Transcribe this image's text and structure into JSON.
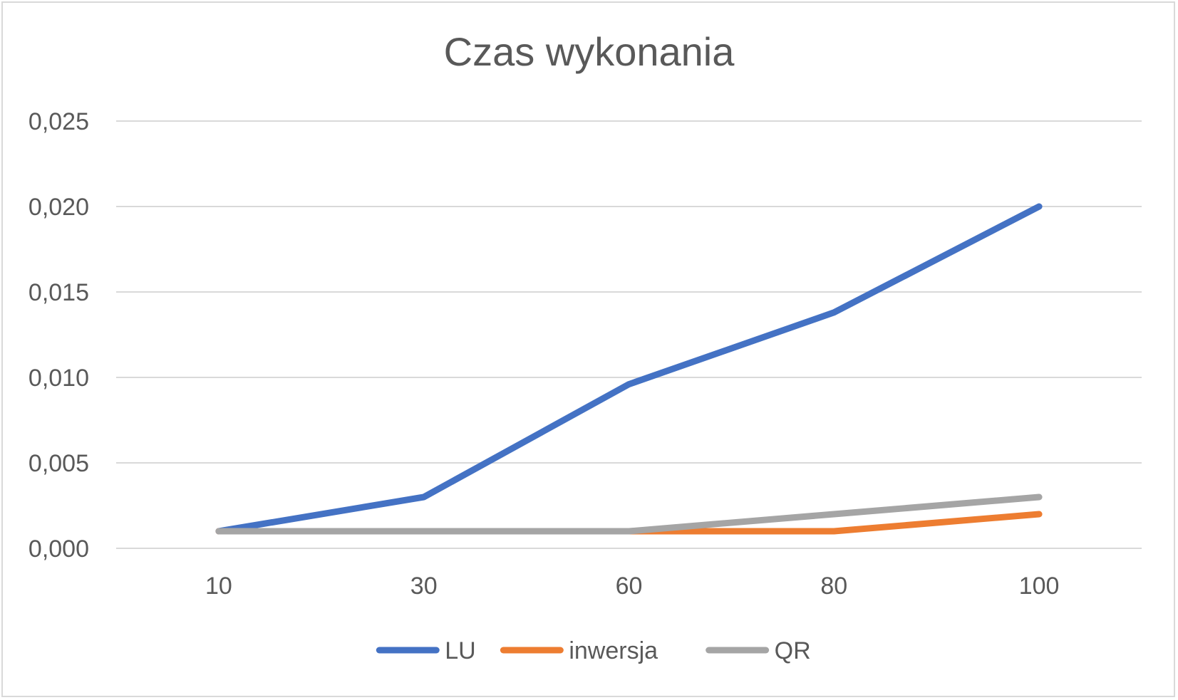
{
  "chart_data": {
    "type": "line",
    "title": "Czas wykonania",
    "xlabel": "",
    "ylabel": "",
    "categories": [
      "10",
      "30",
      "60",
      "80",
      "100"
    ],
    "y_ticks": [
      "0,000",
      "0,005",
      "0,010",
      "0,015",
      "0,020",
      "0,025"
    ],
    "ylim": [
      0,
      0.025
    ],
    "grid": true,
    "legend_position": "bottom",
    "series": [
      {
        "name": "LU",
        "color": "#4472c4",
        "values": [
          0.001,
          0.003,
          0.0096,
          0.0138,
          0.02
        ]
      },
      {
        "name": "inwersja",
        "color": "#ed7d31",
        "values": [
          0.001,
          0.001,
          0.001,
          0.001,
          0.002
        ]
      },
      {
        "name": "QR",
        "color": "#a5a5a5",
        "values": [
          0.001,
          0.001,
          0.001,
          0.002,
          0.003
        ]
      }
    ]
  }
}
